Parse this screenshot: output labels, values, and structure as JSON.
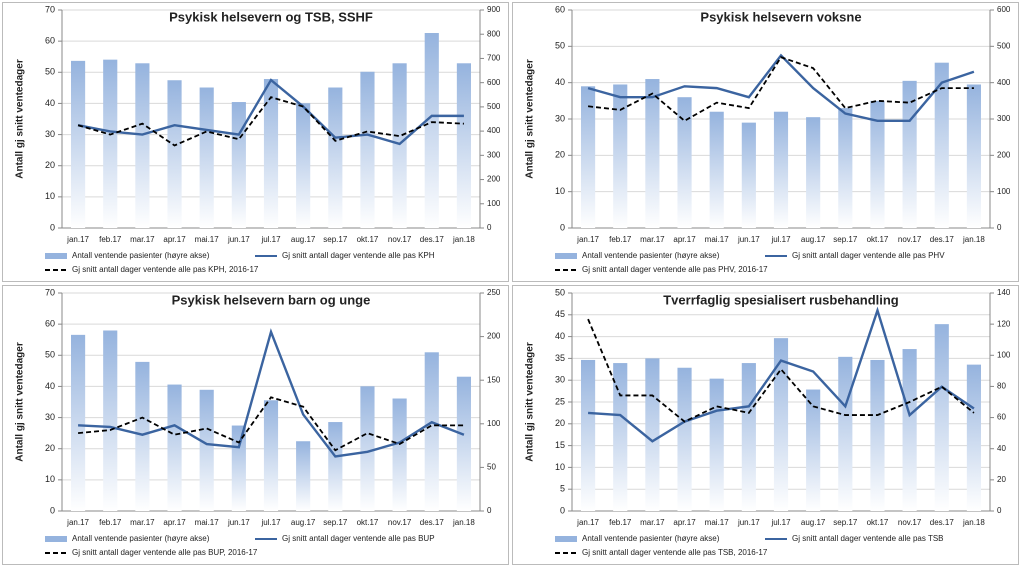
{
  "chart_data": [
    {
      "type": "combo",
      "title": "Psykisk helsevern og TSB, SSHF",
      "ylabel": "Antall gj snitt ventedager",
      "categories": [
        "jan.17",
        "feb.17",
        "mar.17",
        "apr.17",
        "mai.17",
        "jun.17",
        "jul.17",
        "aug.17",
        "sep.17",
        "okt.17",
        "nov.17",
        "des.17",
        "jan.18"
      ],
      "ylim": [
        0,
        70
      ],
      "yticks": [
        0,
        10,
        20,
        30,
        40,
        50,
        60,
        70
      ],
      "y2lim": [
        0,
        900
      ],
      "y2ticks": [
        0,
        100,
        200,
        300,
        400,
        500,
        600,
        700,
        800,
        900
      ],
      "grid": true,
      "series": [
        {
          "name": "Antall ventende pasienter (høyre akse)",
          "kind": "bar",
          "axis": "y2",
          "color": "#95b3de",
          "values": [
            690,
            695,
            680,
            610,
            580,
            520,
            615,
            515,
            580,
            645,
            680,
            805,
            680
          ]
        },
        {
          "name": "Gj snitt antall dager ventende alle pas KPH",
          "kind": "line",
          "color": "#3b64a0",
          "values": [
            33,
            31,
            30,
            33,
            31.5,
            30,
            47.5,
            39,
            29,
            30,
            27,
            36,
            36
          ]
        },
        {
          "name": "Gj snitt antall dager ventende alle pas KPH, 2016-17",
          "kind": "dashed",
          "color": "#000000",
          "values": [
            33,
            30,
            33.5,
            26.5,
            31,
            28.5,
            42,
            39,
            28,
            31,
            29.5,
            34,
            33.5
          ]
        }
      ]
    },
    {
      "type": "combo",
      "title": "Psykisk helsevern voksne",
      "ylabel": "Antall gj snitt ventedager",
      "categories": [
        "jan.17",
        "feb.17",
        "mar.17",
        "apr.17",
        "mai.17",
        "jun.17",
        "jul.17",
        "aug.17",
        "sep.17",
        "okt.17",
        "nov.17",
        "des.17",
        "jan.18"
      ],
      "ylim": [
        0,
        60
      ],
      "yticks": [
        0,
        10,
        20,
        30,
        40,
        50,
        60
      ],
      "y2lim": [
        0,
        600
      ],
      "y2ticks": [
        0,
        100,
        200,
        300,
        400,
        500,
        600
      ],
      "grid": true,
      "series": [
        {
          "name": "Antall ventende pasienter (høyre akse)",
          "kind": "bar",
          "axis": "y2",
          "color": "#95b3de",
          "values": [
            390,
            395,
            410,
            360,
            320,
            290,
            320,
            305,
            330,
            350,
            405,
            455,
            395
          ]
        },
        {
          "name": "Gj snitt antall dager ventende alle pas PHV",
          "kind": "line",
          "color": "#3b64a0",
          "values": [
            38.5,
            36,
            36,
            39,
            38.5,
            36,
            47.5,
            38.5,
            31.5,
            29.5,
            29.5,
            40,
            43
          ]
        },
        {
          "name": "Gj snitt antall dager ventende alle pas PHV, 2016-17",
          "kind": "dashed",
          "color": "#000000",
          "values": [
            33.5,
            32.5,
            37,
            29.5,
            34.5,
            33,
            47,
            44,
            33,
            35,
            34.5,
            38.5,
            38.5
          ]
        }
      ]
    },
    {
      "type": "combo",
      "title": "Psykisk helsevern barn og unge",
      "ylabel": "Antall gj snitt ventedager",
      "categories": [
        "jan.17",
        "feb.17",
        "mar.17",
        "apr.17",
        "mai.17",
        "jun.17",
        "jul.17",
        "aug.17",
        "sep.17",
        "okt.17",
        "nov.17",
        "des.17",
        "jan.18"
      ],
      "ylim": [
        0,
        70
      ],
      "yticks": [
        0,
        10,
        20,
        30,
        40,
        50,
        60,
        70
      ],
      "y2lim": [
        0,
        250
      ],
      "y2ticks": [
        0,
        50,
        100,
        150,
        200,
        250
      ],
      "grid": true,
      "series": [
        {
          "name": "Antall ventende pasienter (høyre akse)",
          "kind": "bar",
          "axis": "y2",
          "color": "#95b3de",
          "values": [
            202,
            207,
            171,
            145,
            139,
            98,
            127,
            80,
            102,
            143,
            129,
            182,
            154
          ]
        },
        {
          "name": "Gj snitt antall dager ventende alle pas BUP",
          "kind": "line",
          "color": "#3b64a0",
          "values": [
            27.5,
            27,
            24.5,
            27.5,
            21.5,
            20.5,
            57.5,
            31,
            17.5,
            19,
            22,
            28.5,
            24.5
          ]
        },
        {
          "name": "Gj snitt antall dager ventende alle pas BUP, 2016-17",
          "kind": "dashed",
          "color": "#000000",
          "values": [
            25,
            26,
            30,
            24.5,
            26.5,
            22,
            36.5,
            33.5,
            19.5,
            25,
            21.5,
            27.5,
            27.5
          ]
        }
      ]
    },
    {
      "type": "combo",
      "title": "Tverrfaglig spesialisert rusbehandling",
      "ylabel": "Antall gj snitt ventedager",
      "categories": [
        "jan.17",
        "feb.17",
        "mar.17",
        "apr.17",
        "mai.17",
        "jun.17",
        "jul.17",
        "aug.17",
        "sep.17",
        "okt.17",
        "nov.17",
        "des.17",
        "jan.18"
      ],
      "ylim": [
        0,
        50
      ],
      "yticks": [
        0,
        5,
        10,
        15,
        20,
        25,
        30,
        35,
        40,
        45,
        50
      ],
      "y2lim": [
        0,
        140
      ],
      "y2ticks": [
        0,
        20,
        40,
        60,
        80,
        100,
        120,
        140
      ],
      "grid": true,
      "series": [
        {
          "name": "Antall ventende pasienter (høyre akse)",
          "kind": "bar",
          "axis": "y2",
          "color": "#95b3de",
          "values": [
            97,
            95,
            98,
            92,
            85,
            95,
            111,
            78,
            99,
            97,
            104,
            120,
            94
          ]
        },
        {
          "name": "Gj snitt antall dager ventende alle pas TSB",
          "kind": "line",
          "color": "#3b64a0",
          "values": [
            22.5,
            22,
            16,
            20.5,
            23,
            24,
            34.5,
            32,
            24,
            46,
            22,
            28.5,
            23.5
          ]
        },
        {
          "name": "Gj snitt antall dager ventende alle pas TSB, 2016-17",
          "kind": "dashed",
          "color": "#000000",
          "values": [
            44,
            26.5,
            26.5,
            20.5,
            24,
            22.5,
            32.5,
            24,
            22,
            22,
            25,
            28.5,
            22.5
          ]
        }
      ]
    }
  ]
}
